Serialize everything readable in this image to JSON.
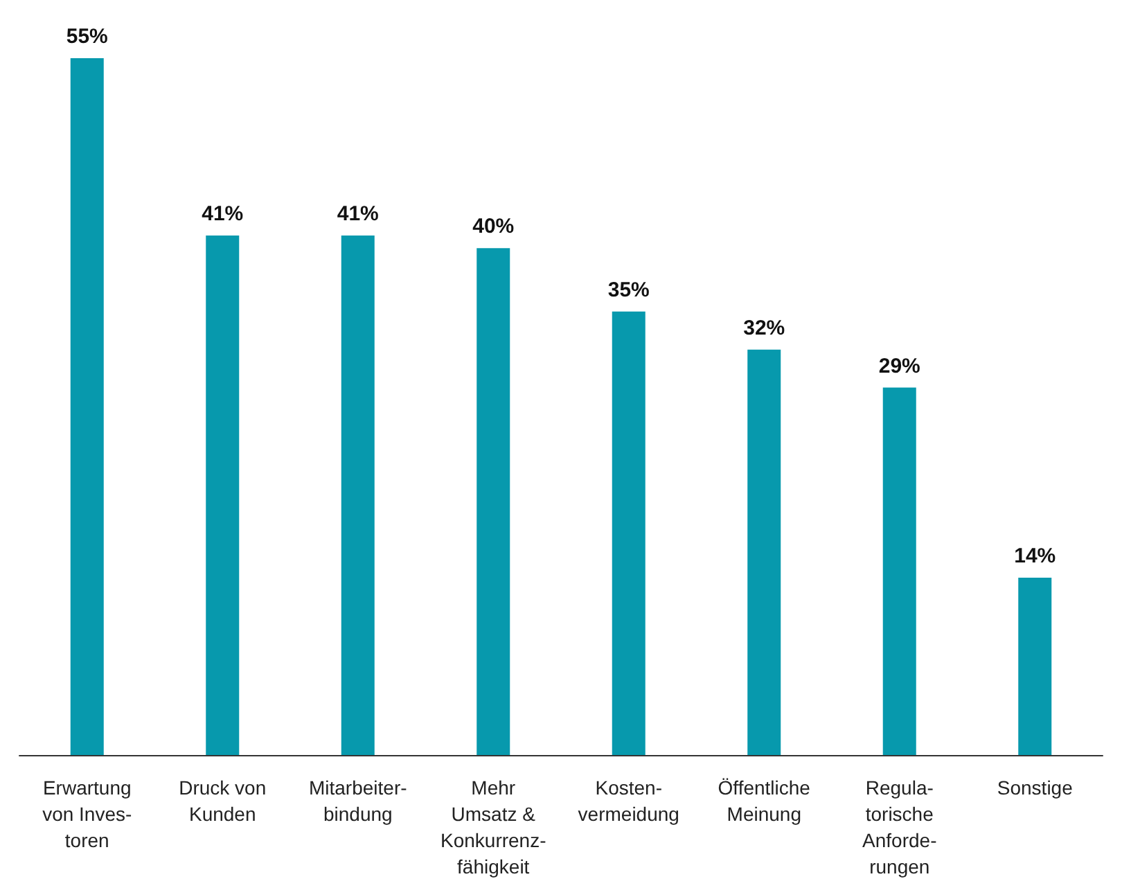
{
  "chart_data": {
    "type": "bar",
    "categories": [
      "Erwartung\nvon Inves-\ntoren",
      "Druck von\nKunden",
      "Mitarbeiter-\nbindung",
      "Mehr\nUmsatz &\nKonkurrenz-\nfähigkeit",
      "Kosten-\nvermeidung",
      "Öffentliche\nMeinung",
      "Regula-\ntorische\nAnforde-\nrungen",
      "Sonstige"
    ],
    "values": [
      55,
      41,
      41,
      40,
      35,
      32,
      29,
      14
    ],
    "value_labels": [
      "55%",
      "41%",
      "41%",
      "40%",
      "35%",
      "32%",
      "29%",
      "14%"
    ],
    "color": "#0799ad",
    "tick_labels": "x",
    "grid": false
  }
}
